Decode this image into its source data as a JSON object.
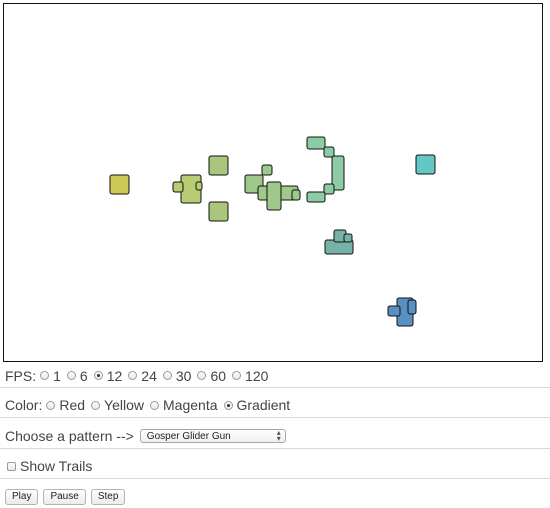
{
  "board": {
    "cells": [
      {
        "label": "block-1",
        "color": "#cfc956"
      },
      {
        "label": "cluster-2",
        "color": "#b8cc73"
      },
      {
        "label": "block-3a",
        "color": "#a9c67c"
      },
      {
        "label": "block-3b",
        "color": "#a9c67c"
      },
      {
        "label": "cluster-4",
        "color": "#9fc98b"
      },
      {
        "label": "arc-5",
        "color": "#8ccca5"
      },
      {
        "label": "block-6",
        "color": "#62c7c6"
      },
      {
        "label": "cluster-7",
        "color": "#78b1a8"
      },
      {
        "label": "cluster-8",
        "color": "#5a8fc1"
      }
    ]
  },
  "fps": {
    "label": "FPS:",
    "options": [
      "1",
      "6",
      "12",
      "24",
      "30",
      "60",
      "120"
    ],
    "selected": "12"
  },
  "color": {
    "label": "Color:",
    "options": [
      "Red",
      "Yellow",
      "Magenta",
      "Gradient"
    ],
    "selected": "Gradient"
  },
  "pattern": {
    "label": "Choose a pattern -->",
    "selected": "Gosper Glider Gun"
  },
  "trails": {
    "label": "Show Trails",
    "checked": false
  },
  "buttons": {
    "play": "Play",
    "pause": "Pause",
    "step": "Step"
  }
}
